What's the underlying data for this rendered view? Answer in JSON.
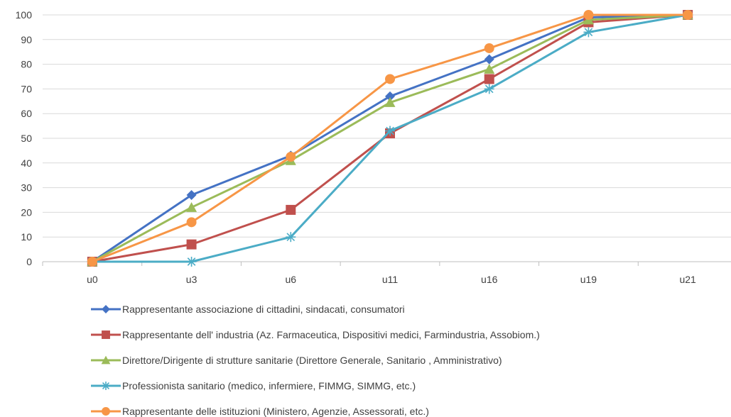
{
  "chart_data": {
    "type": "line",
    "title": "",
    "xlabel": "",
    "ylabel": "",
    "categories": [
      "u0",
      "u3",
      "u6",
      "u11",
      "u16",
      "u19",
      "u21"
    ],
    "ylim": [
      0,
      100
    ],
    "yticks": [
      0,
      10,
      20,
      30,
      40,
      50,
      60,
      70,
      80,
      90,
      100
    ],
    "grid": "horizontal",
    "legend": "bottom",
    "series": [
      {
        "name": "Rappresentante associazione di cittadini, sindacati, consumatori",
        "values": [
          0,
          27,
          43,
          67,
          82,
          99,
          100
        ],
        "color": "#4472C4",
        "marker": "diamond"
      },
      {
        "name": "Rappresentante dell' industria (Az. Farmaceutica, Dispositivi medici, Farmindustria, Assobiom.)",
        "values": [
          0,
          7,
          21,
          52,
          74,
          97,
          100
        ],
        "color": "#C0504D",
        "marker": "square"
      },
      {
        "name": "Direttore/Dirigente di strutture sanitarie (Direttore Generale, Sanitario , Amministrativo)",
        "values": [
          0,
          22,
          41,
          64.5,
          78,
          98,
          100
        ],
        "color": "#9BBB59",
        "marker": "triangle"
      },
      {
        "name": "Professionista sanitario (medico, infermiere, FIMMG, SIMMG, etc.)",
        "values": [
          0,
          0,
          10,
          53,
          70,
          93,
          100
        ],
        "color": "#4BACC6",
        "marker": "star"
      },
      {
        "name": "Rappresentante delle istituzioni (Ministero, Agenzie, Assessorati, etc.)",
        "values": [
          0,
          16,
          42.5,
          74,
          86.5,
          100,
          100
        ],
        "color": "#F79646",
        "marker": "circle"
      }
    ]
  }
}
